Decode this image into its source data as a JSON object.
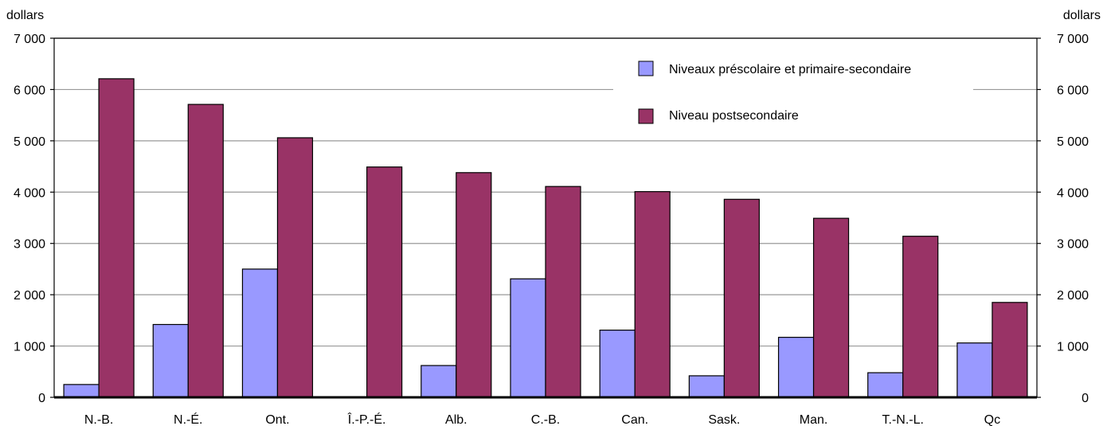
{
  "chart_data": {
    "type": "bar",
    "ylabel_left": "dollars",
    "ylabel_right": "dollars",
    "ylim": [
      0,
      7000
    ],
    "yticks": [
      0,
      1000,
      2000,
      3000,
      4000,
      5000,
      6000,
      7000
    ],
    "ytick_labels": [
      "0",
      "1 000",
      "2 000",
      "3 000",
      "4 000",
      "5 000",
      "6 000",
      "7 000"
    ],
    "categories": [
      "N.-B.",
      "N.-É.",
      "Ont.",
      "Î.-P.-É.",
      "Alb.",
      "C.-B.",
      "Can.",
      "Sask.",
      "Man.",
      "T.-N.-L.",
      "Qc"
    ],
    "series": [
      {
        "name": "Niveaux préscolaire et primaire-secondaire",
        "color": "#9999ff",
        "values": [
          250,
          1420,
          2500,
          0,
          620,
          2310,
          1310,
          420,
          1170,
          480,
          1060
        ]
      },
      {
        "name": "Niveau postsecondaire",
        "color": "#993366",
        "values": [
          6210,
          5710,
          5060,
          4490,
          4380,
          4110,
          4010,
          3860,
          3490,
          3140,
          1850
        ]
      }
    ],
    "grid": true,
    "legend_position": "top-right"
  }
}
